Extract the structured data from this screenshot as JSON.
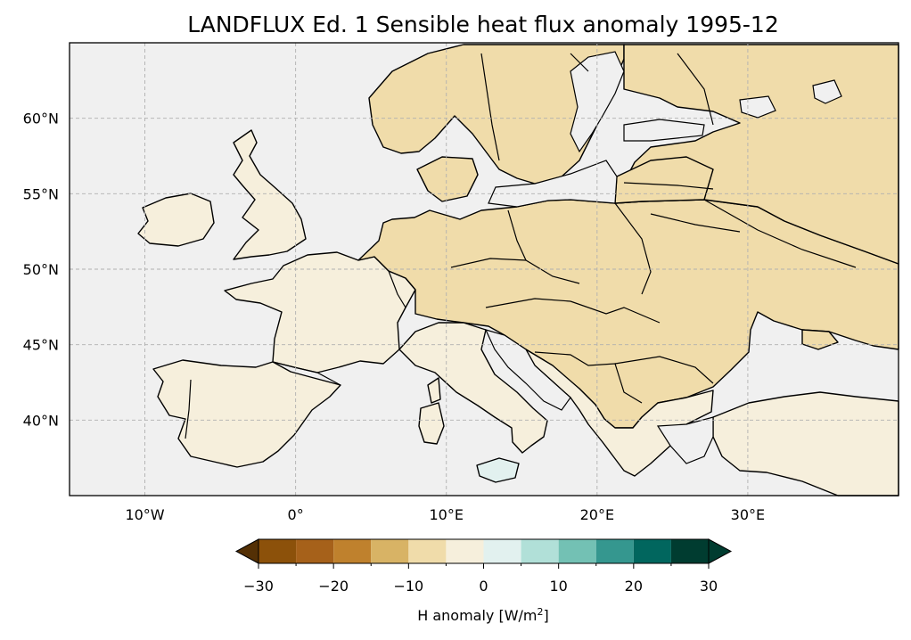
{
  "title": "LANDFLUX Ed. 1 Sensible heat flux anomaly 1995-12",
  "map": {
    "projection": "PlateCarree",
    "extent_lon": [
      -15,
      40
    ],
    "extent_lat": [
      35,
      65
    ],
    "x_ticks": [
      {
        "lon": -10,
        "label": "10°W"
      },
      {
        "lon": 0,
        "label": "0°"
      },
      {
        "lon": 10,
        "label": "10°E"
      },
      {
        "lon": 20,
        "label": "20°E"
      },
      {
        "lon": 30,
        "label": "30°E"
      }
    ],
    "y_ticks": [
      {
        "lat": 60,
        "label": "60°N"
      },
      {
        "lat": 55,
        "label": "55°N"
      },
      {
        "lat": 50,
        "label": "50°N"
      },
      {
        "lat": 45,
        "label": "45°N"
      },
      {
        "lat": 40,
        "label": "40°N"
      }
    ],
    "gridlines": true,
    "ocean_color": "#f0f0f0"
  },
  "colorbar": {
    "label_prefix": "H anomaly [W/m",
    "label_sup": "2",
    "label_suffix": "]",
    "extend": "both",
    "boundaries": [
      -30,
      -25,
      -20,
      -15,
      -10,
      -5,
      0,
      5,
      10,
      15,
      20,
      25,
      30
    ],
    "colors": [
      "#8c510a",
      "#a6611a",
      "#bf812d",
      "#d8b365",
      "#f0dcaa",
      "#f6efdc",
      "#e2f1ef",
      "#b1e0d8",
      "#73c1b4",
      "#35978f",
      "#01665e",
      "#003c30"
    ],
    "under_color": "#543005",
    "over_color": "#003c30",
    "tick_labels": [
      {
        "value": -30,
        "label": "−30"
      },
      {
        "value": -20,
        "label": "−20"
      },
      {
        "value": -10,
        "label": "−10"
      },
      {
        "value": 0,
        "label": "0"
      },
      {
        "value": 10,
        "label": "10"
      },
      {
        "value": 20,
        "label": "20"
      },
      {
        "value": 30,
        "label": "30"
      }
    ]
  }
}
